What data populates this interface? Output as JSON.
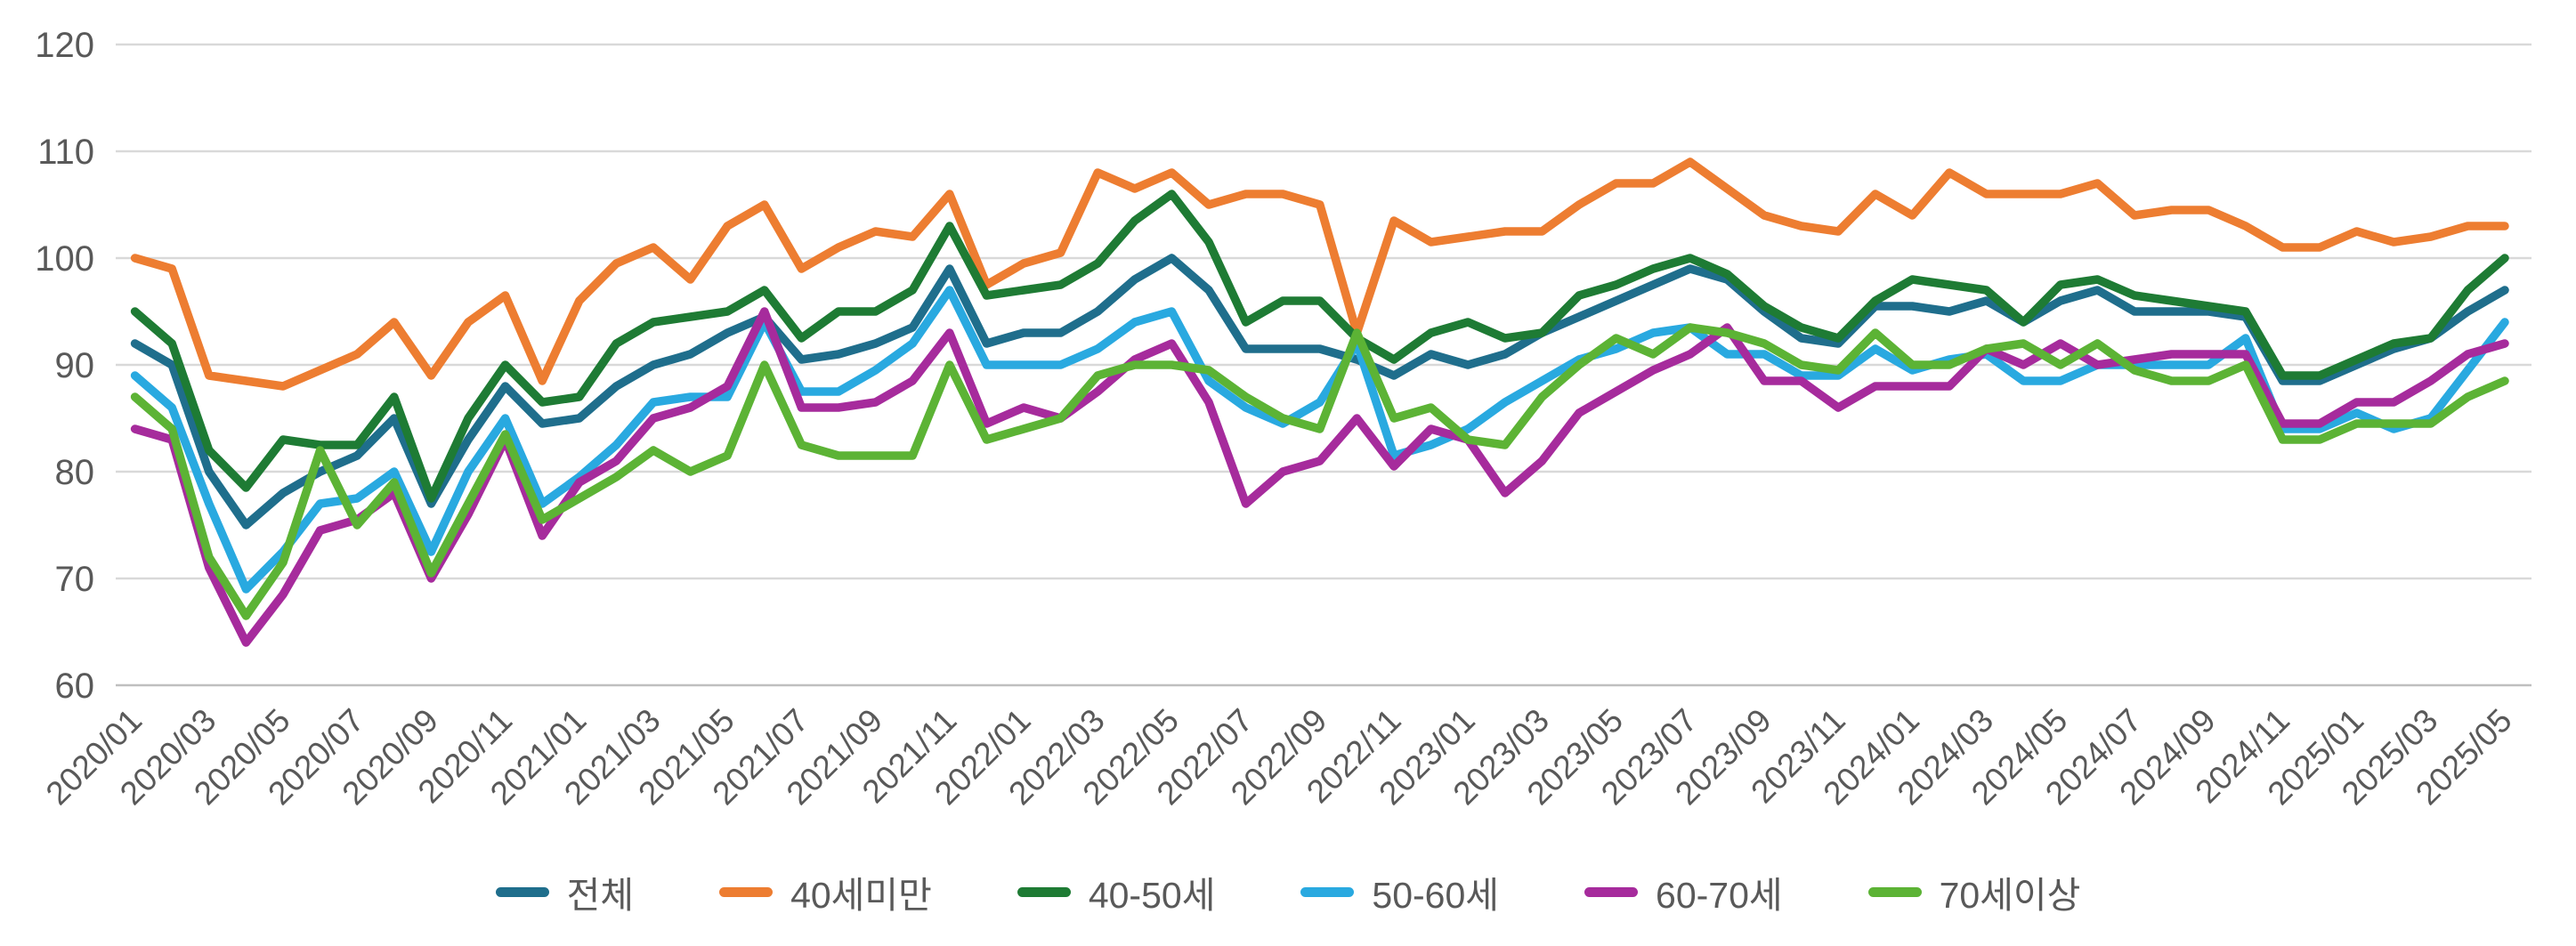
{
  "chart_data": {
    "type": "line",
    "title": "",
    "xlabel": "",
    "ylabel": "",
    "ylim": [
      60,
      120
    ],
    "y_tick_step": 10,
    "y_tick_labels": [
      "60",
      "70",
      "80",
      "90",
      "100",
      "110",
      "120"
    ],
    "grid": true,
    "legend_position": "bottom",
    "text_color": "#595959",
    "grid_color": "#d9d9d9",
    "x_tick_every": 2,
    "categories": [
      "2020/01",
      "2020/02",
      "2020/03",
      "2020/04",
      "2020/05",
      "2020/06",
      "2020/07",
      "2020/08",
      "2020/09",
      "2020/10",
      "2020/11",
      "2020/12",
      "2021/01",
      "2021/02",
      "2021/03",
      "2021/04",
      "2021/05",
      "2021/06",
      "2021/07",
      "2021/08",
      "2021/09",
      "2021/10",
      "2021/11",
      "2021/12",
      "2022/01",
      "2022/02",
      "2022/03",
      "2022/04",
      "2022/05",
      "2022/06",
      "2022/07",
      "2022/08",
      "2022/09",
      "2022/10",
      "2022/11",
      "2022/12",
      "2023/01",
      "2023/02",
      "2023/03",
      "2023/04",
      "2023/05",
      "2023/06",
      "2023/07",
      "2023/08",
      "2023/09",
      "2023/10",
      "2023/11",
      "2023/12",
      "2024/01",
      "2024/02",
      "2024/03",
      "2024/04",
      "2024/05",
      "2024/06",
      "2024/07",
      "2024/08",
      "2024/09",
      "2024/10",
      "2024/11",
      "2024/12",
      "2025/01",
      "2025/02",
      "2025/03",
      "2025/04",
      "2025/05"
    ],
    "series": [
      {
        "name": "전체",
        "color": "#1F6E8C",
        "values": [
          92,
          90,
          80,
          75,
          78,
          80,
          81.5,
          85,
          77,
          83,
          88,
          84.5,
          85,
          88,
          90,
          91,
          93,
          94.5,
          90.5,
          91,
          92,
          93.5,
          99,
          92,
          93,
          93,
          95,
          98,
          100,
          97,
          91.5,
          91.5,
          91.5,
          90.5,
          89,
          91,
          90,
          91,
          93,
          94.5,
          96,
          97.5,
          99,
          98,
          95,
          92.5,
          92,
          95.5,
          95.5,
          95,
          96,
          94,
          96,
          97,
          95,
          95,
          95,
          94.5,
          88.5,
          88.5,
          90,
          91.5,
          92.5,
          95,
          97
        ]
      },
      {
        "name": "40세미만",
        "color": "#ED7D31",
        "values": [
          100,
          99,
          89,
          88.5,
          88,
          89.5,
          91,
          94,
          89,
          94,
          96.5,
          88.5,
          96,
          99.5,
          101,
          98,
          103,
          105,
          99,
          101,
          102.5,
          102,
          106,
          97.5,
          99.5,
          100.5,
          108,
          106.5,
          108,
          105,
          106,
          106,
          105,
          93,
          103.5,
          101.5,
          102,
          102.5,
          102.5,
          105,
          107,
          107,
          109,
          106.5,
          104,
          103,
          102.5,
          106,
          104,
          108,
          106,
          106,
          106,
          107,
          104,
          104.5,
          104.5,
          103,
          101,
          101,
          102.5,
          101.5,
          102,
          103,
          103
        ]
      },
      {
        "name": "40-50세",
        "color": "#1E7B34",
        "values": [
          95,
          92,
          82,
          78.5,
          83,
          82.5,
          82.5,
          87,
          77.5,
          85,
          90,
          86.5,
          87,
          92,
          94,
          94.5,
          95,
          97,
          92.5,
          95,
          95,
          97,
          103,
          96.5,
          97,
          97.5,
          99.5,
          103.5,
          106,
          101.5,
          94,
          96,
          96,
          92.5,
          90.5,
          93,
          94,
          92.5,
          93,
          96.5,
          97.5,
          99,
          100,
          98.5,
          95.5,
          93.5,
          92.5,
          96,
          98,
          97.5,
          97,
          94,
          97.5,
          98,
          96.5,
          96,
          95.5,
          95,
          89,
          89,
          90.5,
          92,
          92.5,
          97,
          100
        ]
      },
      {
        "name": "50-60세",
        "color": "#29A9E0",
        "values": [
          89,
          86,
          77,
          69,
          72.5,
          77,
          77.5,
          80,
          72.5,
          80,
          85,
          77,
          79.5,
          82.5,
          86.5,
          87,
          87,
          94,
          87.5,
          87.5,
          89.5,
          92,
          97,
          90,
          90,
          90,
          91.5,
          94,
          95,
          88.5,
          86,
          84.5,
          86.5,
          92,
          81.5,
          82.5,
          84,
          86.5,
          88.5,
          90.5,
          91.5,
          93,
          93.5,
          91,
          91,
          89,
          89,
          91.5,
          89.5,
          90.5,
          91,
          88.5,
          88.5,
          90,
          90,
          90,
          90,
          92.5,
          84,
          84,
          85.5,
          84,
          85,
          89.5,
          94
        ]
      },
      {
        "name": "60-70세",
        "color": "#A62B9C",
        "values": [
          84,
          83,
          71,
          64,
          68.5,
          74.5,
          75.5,
          78,
          70,
          76,
          83,
          74,
          79,
          81,
          85,
          86,
          88,
          95,
          86,
          86,
          86.5,
          88.5,
          93,
          84.5,
          86,
          85,
          87.5,
          90.5,
          92,
          86.5,
          77,
          80,
          81,
          85,
          80.5,
          84,
          83,
          78,
          81,
          85.5,
          87.5,
          89.5,
          91,
          93.5,
          88.5,
          88.5,
          86,
          88,
          88,
          88,
          91.5,
          90,
          92,
          90,
          90.5,
          91,
          91,
          91,
          84.5,
          84.5,
          86.5,
          86.5,
          88.5,
          91,
          92
        ]
      },
      {
        "name": "70세이상",
        "color": "#5CB335",
        "values": [
          87,
          84,
          72,
          66.5,
          71.5,
          82,
          75,
          79,
          70.5,
          77,
          83.5,
          75.5,
          77.5,
          79.5,
          82,
          80,
          81.5,
          90,
          82.5,
          81.5,
          81.5,
          81.5,
          90,
          83,
          84,
          85,
          89,
          90,
          90,
          89.5,
          87,
          85,
          84,
          93,
          85,
          86,
          83,
          82.5,
          87,
          90,
          92.5,
          91,
          93.5,
          93,
          92,
          90,
          89.5,
          93,
          90,
          90,
          91.5,
          92,
          90,
          92,
          89.5,
          88.5,
          88.5,
          90,
          83,
          83,
          84.5,
          84.5,
          84.5,
          87,
          88.5
        ]
      }
    ]
  }
}
